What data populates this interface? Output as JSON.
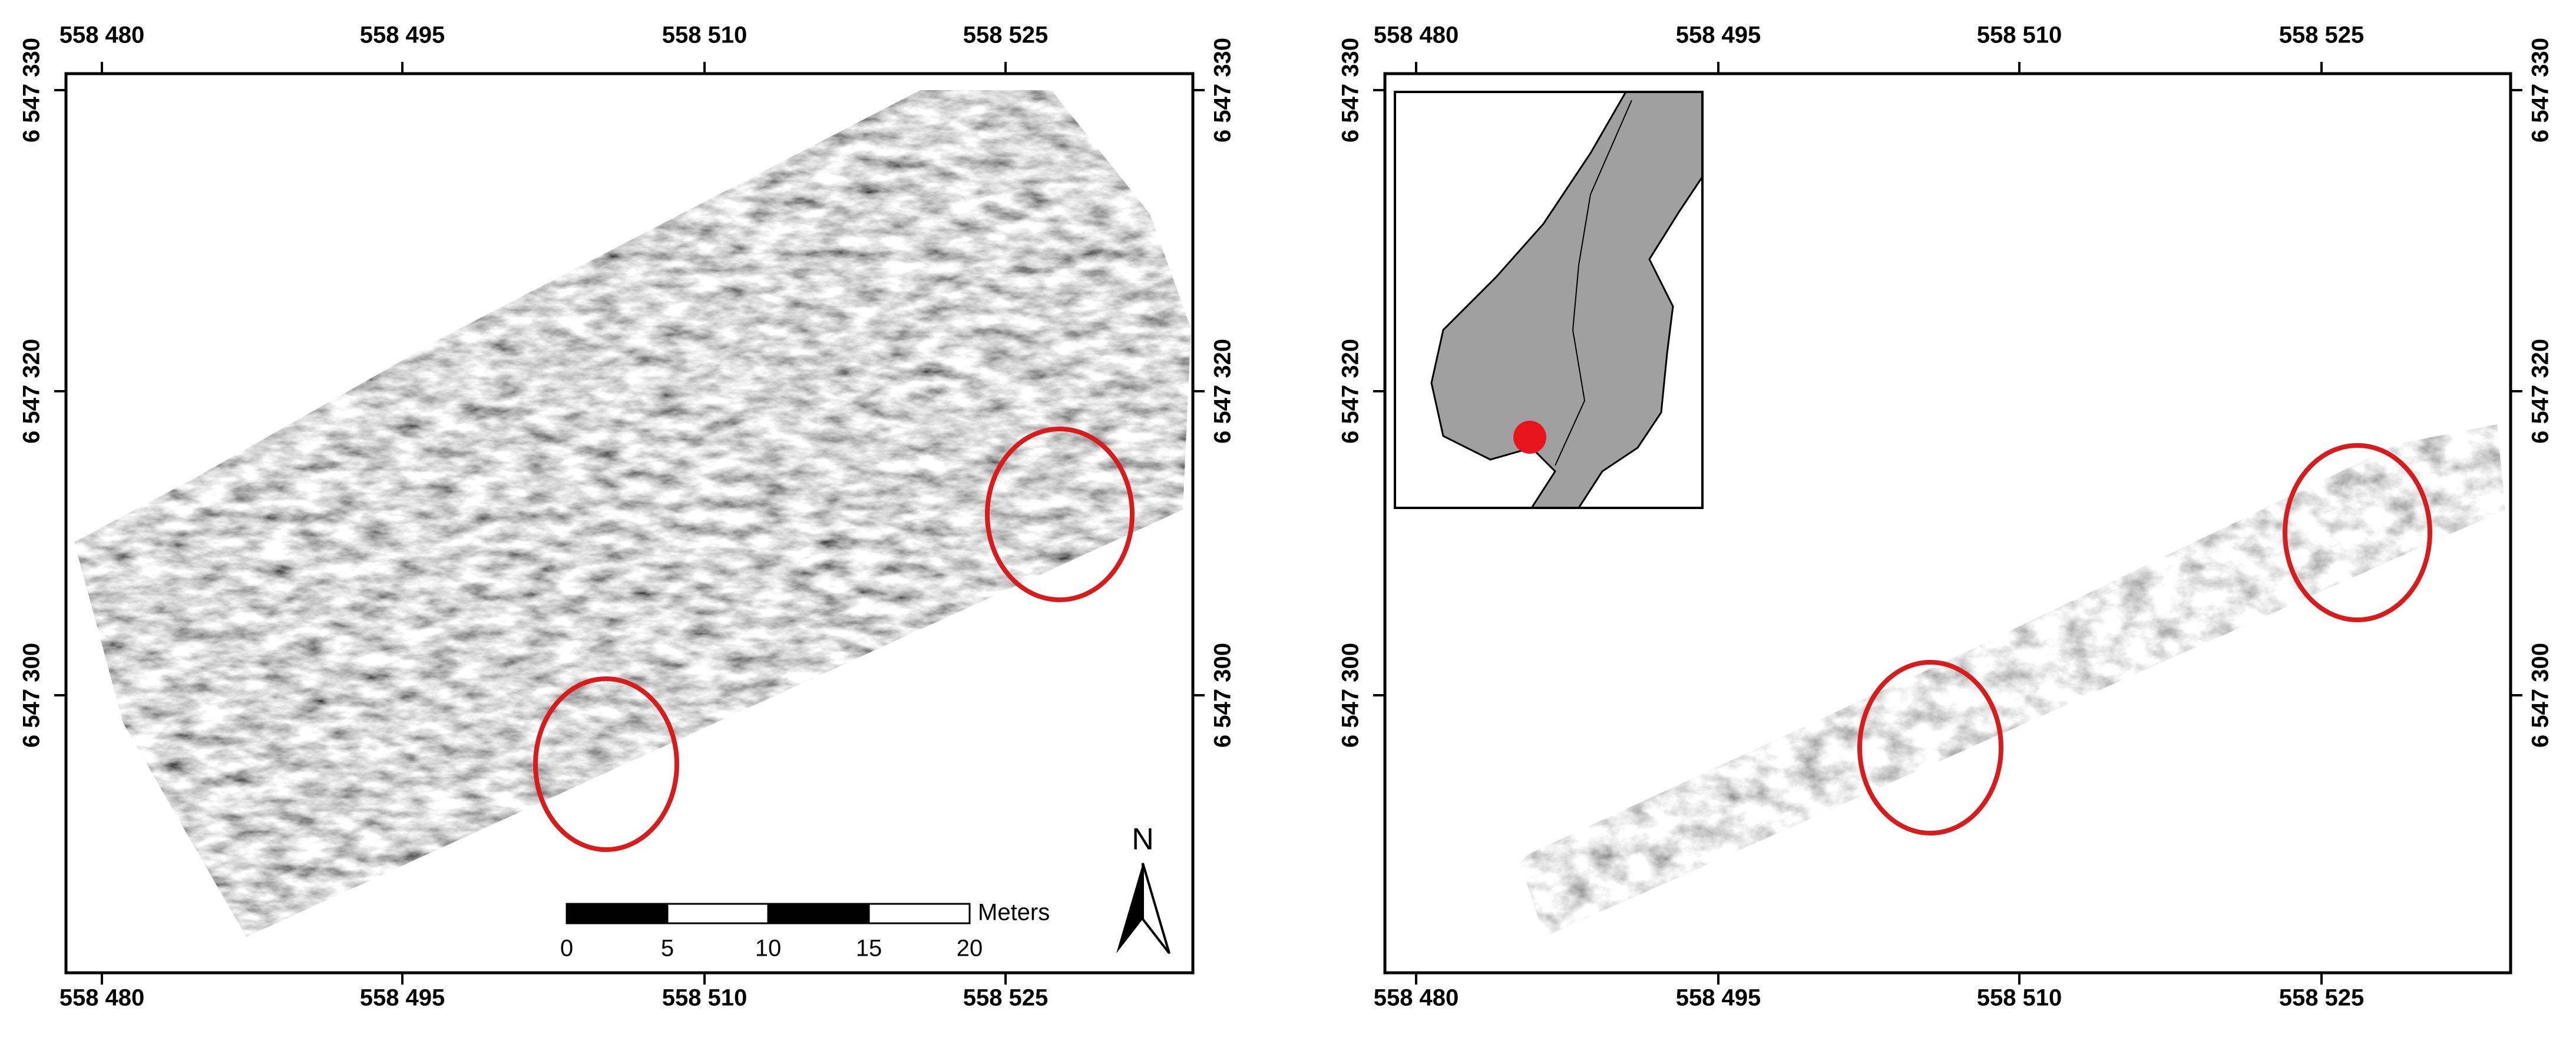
{
  "left_map": {
    "x_ticks": [
      "558 480",
      "558 495",
      "558 510",
      "558 525"
    ],
    "y_ticks": [
      "6 547 330",
      "6 547 320",
      "6 547 300"
    ]
  },
  "right_map": {
    "x_ticks": [
      "558 480",
      "558 495",
      "558 510",
      "558 525"
    ],
    "y_ticks": [
      "6 547 330",
      "6 547 320",
      "6 547 300"
    ]
  },
  "scale_bar": {
    "unit": "Meters",
    "labels": [
      "0",
      "5",
      "10",
      "15",
      "20"
    ]
  },
  "north_arrow": "N"
}
